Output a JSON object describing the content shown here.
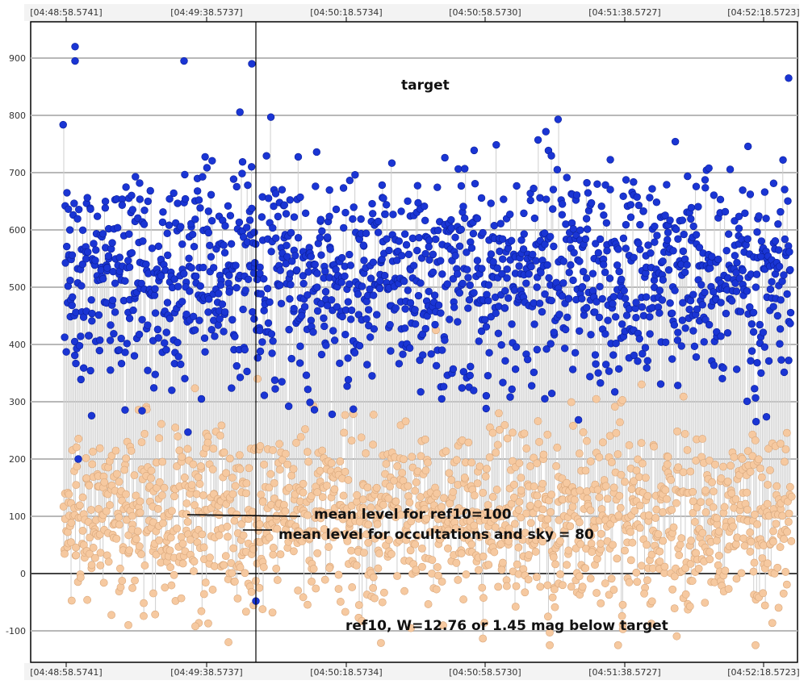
{
  "chart_data": {
    "type": "scatter",
    "title": "",
    "xlabel": "",
    "ylabel": "",
    "x_tick_labels": [
      "[04:48:58.5741]",
      "[04:49:38.5737]",
      "[04:50:18.5734]",
      "[04:50:58.5730]",
      "[04:51:38.5727]",
      "[04:52:18.5723]"
    ],
    "y_ticks": [
      -100,
      0,
      100,
      200,
      300,
      400,
      500,
      600,
      700,
      800,
      900
    ],
    "ylim": [
      -140,
      960
    ],
    "x_range_seconds_shown": 0,
    "grid": true,
    "series": [
      {
        "name": "target",
        "color": "#1a35d4",
        "stroke": "#0b1f9a",
        "approx_mean": 520,
        "approx_spread": 95,
        "approx_min": -50,
        "approx_max": 920
      },
      {
        "name": "ref10",
        "color": "#f6c9a0",
        "stroke": "#d9a77b",
        "approx_mean": 100,
        "approx_spread": 80,
        "approx_min": -125,
        "approx_max": 425
      }
    ],
    "reference_lines": [
      {
        "label": "mean level for ref10=100",
        "value": 100
      },
      {
        "label": "mean level for occultations and sky = 80",
        "value": 80
      }
    ],
    "annotations": [
      {
        "text": "target"
      },
      {
        "text": "mean level for ref10=100"
      },
      {
        "text": "mean level for occultations and sky = 80"
      },
      {
        "text": "ref10, W=12.76 or 1.45 mag below target"
      }
    ],
    "cursor_label": ""
  },
  "colors": {
    "zero_line": "#444444",
    "grid_major": "#b8b8b8",
    "axis": "#000000",
    "tick_box": "#f3f3f3"
  }
}
